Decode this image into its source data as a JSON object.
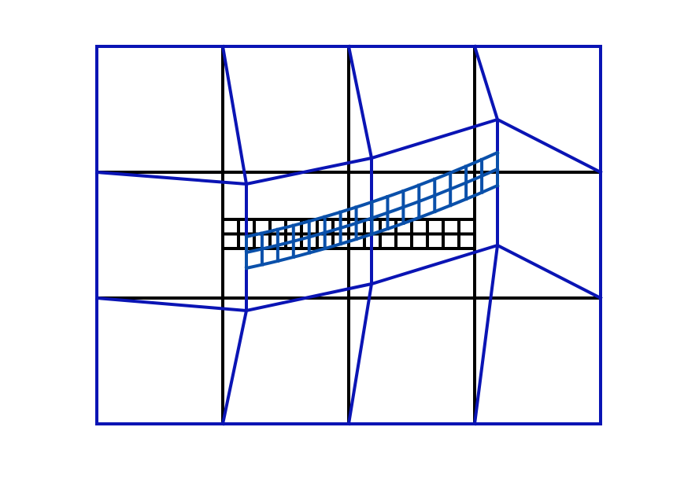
{
  "colors": {
    "background": "#ffffff",
    "undeformed": "#000000",
    "deformed": "#0a14b4",
    "refined_deformed": "#0a50aa"
  },
  "coarse_grid": {
    "cols": 4,
    "rows": 3
  },
  "refined_band": {
    "cols": 16,
    "rows": 2,
    "col_span": [
      1,
      3
    ],
    "row_span": [
      1.4,
      1.6
    ]
  },
  "deformation": {
    "interior_nodes": [
      {
        "col": 1,
        "row": 1,
        "dx": 0.19,
        "dy": 0.1
      },
      {
        "col": 2,
        "row": 1,
        "dx": 0.19,
        "dy": -0.1
      },
      {
        "col": 3,
        "row": 1,
        "dx": 0.19,
        "dy": -0.42
      },
      {
        "col": 1,
        "row": 2,
        "dx": 0.19,
        "dy": 0.1
      },
      {
        "col": 2,
        "row": 2,
        "dx": 0.19,
        "dy": -0.1
      },
      {
        "col": 3,
        "row": 2,
        "dx": 0.19,
        "dy": -0.42
      }
    ],
    "band_curve": {
      "left_offset": 0.19,
      "right_offset": 0.19,
      "lift_at_right": -0.52
    }
  }
}
